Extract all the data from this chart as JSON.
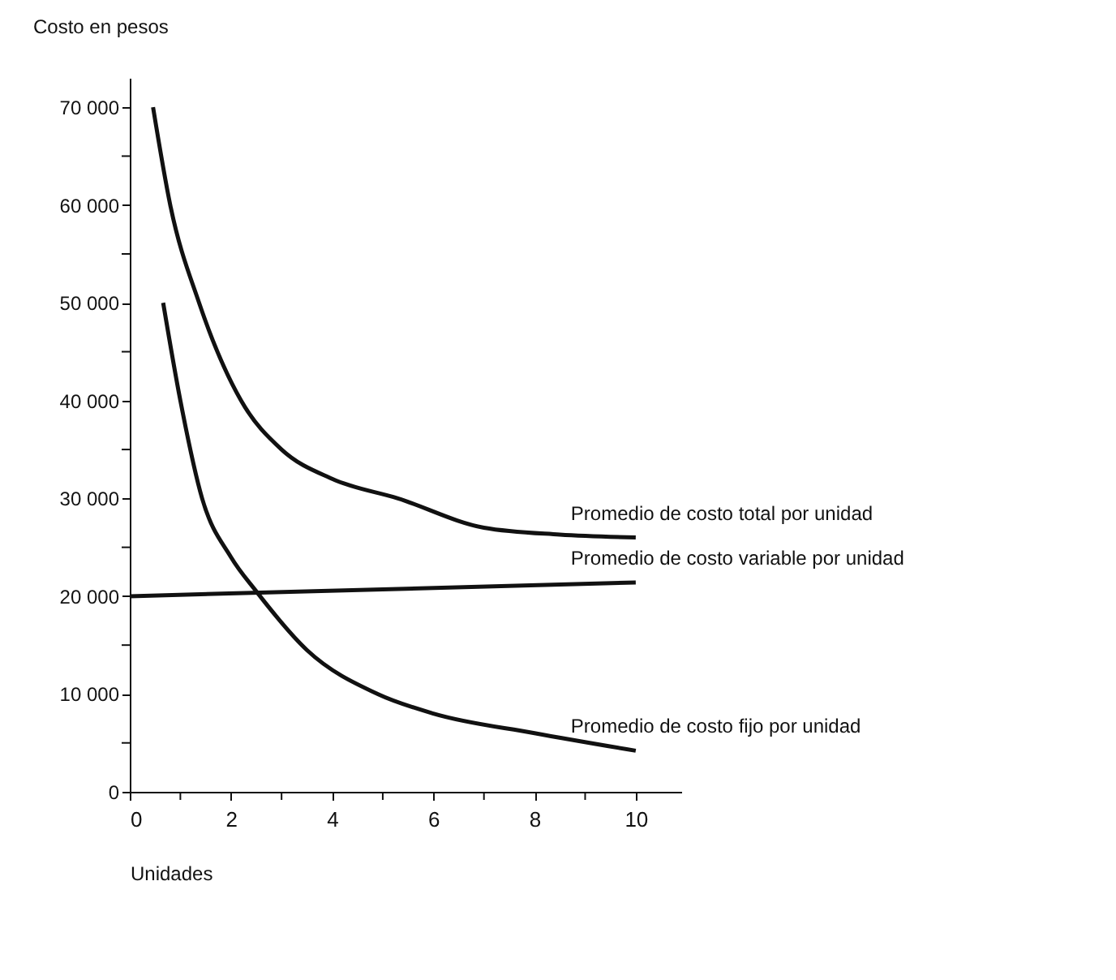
{
  "chart_data": {
    "type": "line",
    "ylabel": "Costo en pesos",
    "xlabel": "Unidades",
    "xlim": [
      0,
      10.9
    ],
    "ylim": [
      0,
      73000
    ],
    "xticks": [
      0,
      {
        "value": 1,
        "label": null
      },
      2,
      {
        "value": 3,
        "label": null
      },
      4,
      {
        "value": 5,
        "label": null
      },
      6,
      {
        "value": 7,
        "label": null
      },
      8,
      {
        "value": 9,
        "label": null
      },
      10
    ],
    "yticks": [
      0,
      {
        "value": 5000,
        "label": null
      },
      {
        "value": 10000,
        "label": "10 000"
      },
      {
        "value": 15000,
        "label": null
      },
      {
        "value": 20000,
        "label": "20 000"
      },
      {
        "value": 25000,
        "label": null
      },
      {
        "value": 30000,
        "label": "30 000"
      },
      {
        "value": 35000,
        "label": null
      },
      {
        "value": 40000,
        "label": "40 000"
      },
      {
        "value": 45000,
        "label": null
      },
      {
        "value": 50000,
        "label": "50 000"
      },
      {
        "value": 55000,
        "label": null
      },
      {
        "value": 60000,
        "label": "60 000"
      },
      {
        "value": 65000,
        "label": null
      },
      {
        "value": 70000,
        "label": "70 000"
      }
    ],
    "grid": false,
    "legend": false,
    "marker": "none",
    "line_style": "solid",
    "series": [
      {
        "name": "Promedio de costo total por unidad",
        "color": "#111111",
        "x": [
          0.46,
          0.8,
          1.37,
          2.2,
          3.0,
          4.0,
          5.3,
          7.0,
          8.5,
          10
        ],
        "values": [
          70000,
          60000,
          50000,
          40000,
          35000,
          32000,
          30000,
          27000,
          26300,
          26000
        ]
      },
      {
        "name": "Promedio de costo variable por unidad",
        "color": "#111111",
        "x": [
          0,
          10
        ],
        "values": [
          20000,
          21400
        ]
      },
      {
        "name": "Promedio de costo fijo por unidad",
        "color": "#111111",
        "x": [
          0.66,
          1.0,
          1.43,
          2.0,
          2.5,
          3.5,
          4.9,
          6.0,
          8.0,
          10
        ],
        "values": [
          50000,
          40000,
          30000,
          24000,
          20500,
          14500,
          10000,
          8000,
          6000,
          4200
        ]
      }
    ]
  }
}
